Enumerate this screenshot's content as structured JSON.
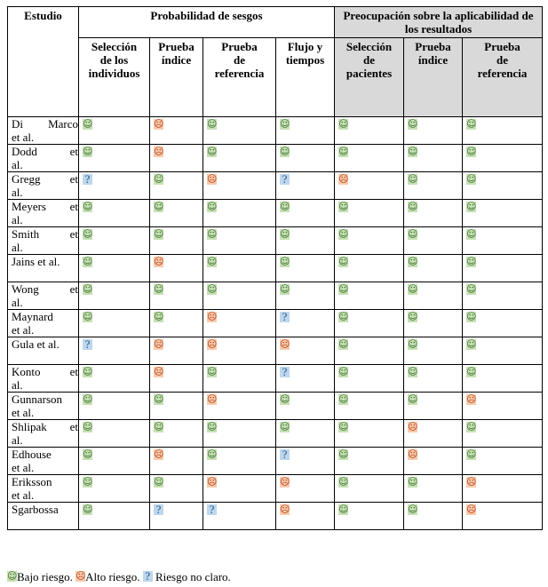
{
  "header": {
    "col_study": "Estudio",
    "group_bias": "Probabilidad de sesgos",
    "group_applicability": "Preocupación sobre la aplicabilidad de los resultados",
    "bias_cols": [
      [
        "Selección",
        "de los",
        "individuos"
      ],
      [
        "Prueba",
        "índice"
      ],
      [
        "Prueba",
        "de",
        "referencia"
      ],
      [
        "Flujo y",
        "tiempos"
      ]
    ],
    "app_cols": [
      [
        "Selección",
        "de",
        "pacientes"
      ],
      [
        "Prueba",
        "índice"
      ],
      [
        "Prueba",
        "de",
        "referencia"
      ]
    ]
  },
  "symbols": {
    "low": "☺",
    "high": "☹",
    "unclear": "?"
  },
  "colors": {
    "low_bg": "#c6e0b4",
    "high_bg": "#f8cbad",
    "unclear_bg": "#bdd7ee",
    "header_shade": "#d9d9d9"
  },
  "rows": [
    {
      "study": [
        "Di Marco",
        "et al."
      ],
      "values": [
        "low",
        "high",
        "low",
        "low",
        "low",
        "low",
        "low"
      ]
    },
    {
      "study": [
        "Dodd et",
        "al."
      ],
      "values": [
        "low",
        "high",
        "low",
        "low",
        "low",
        "low",
        "low"
      ]
    },
    {
      "study": [
        "Gregg et",
        "al."
      ],
      "values": [
        "unclear",
        "low",
        "high",
        "unclear",
        "high",
        "low",
        "low"
      ]
    },
    {
      "study": [
        "Meyers et",
        "al."
      ],
      "values": [
        "low",
        "low",
        "low",
        "low",
        "low",
        "low",
        "low"
      ]
    },
    {
      "study": [
        "Smith et",
        "al."
      ],
      "values": [
        "low",
        "low",
        "low",
        "low",
        "low",
        "low",
        "low"
      ]
    },
    {
      "study": [
        "Jains et al."
      ],
      "values": [
        "low",
        "high",
        "low",
        "low",
        "low",
        "low",
        "low"
      ]
    },
    {
      "study": [
        "Wong et",
        "al."
      ],
      "values": [
        "low",
        "low",
        "low",
        "low",
        "low",
        "low",
        "low"
      ]
    },
    {
      "study": [
        "Maynard",
        "et al."
      ],
      "values": [
        "low",
        "low",
        "high",
        "unclear",
        "low",
        "low",
        "low"
      ]
    },
    {
      "study": [
        "Gula et al."
      ],
      "values": [
        "unclear",
        "high",
        "high",
        "high",
        "low",
        "low",
        "low"
      ]
    },
    {
      "study": [
        "Konto et",
        "al."
      ],
      "values": [
        "low",
        "high",
        "low",
        "unclear",
        "low",
        "low",
        "low"
      ]
    },
    {
      "study": [
        "Gunnarson",
        "et al."
      ],
      "values": [
        "low",
        "low",
        "high",
        "low",
        "low",
        "low",
        "high"
      ]
    },
    {
      "study": [
        "Shlipak et",
        "al."
      ],
      "values": [
        "low",
        "low",
        "low",
        "low",
        "low",
        "high",
        "low"
      ]
    },
    {
      "study": [
        "Edhouse",
        "et al."
      ],
      "values": [
        "low",
        "high",
        "low",
        "unclear",
        "low",
        "high",
        "low"
      ]
    },
    {
      "study": [
        "Eriksson",
        "et al."
      ],
      "values": [
        "low",
        "low",
        "high",
        "high",
        "low",
        "low",
        "high"
      ]
    },
    {
      "study": [
        "Sgarbossa"
      ],
      "values": [
        "low",
        "unclear",
        "unclear",
        "high",
        "low",
        "low",
        "high"
      ]
    }
  ],
  "legend": {
    "low_text": "Bajo riesgo.",
    "high_text": "Alto riesgo.",
    "unclear_text": "Riesgo no claro."
  }
}
